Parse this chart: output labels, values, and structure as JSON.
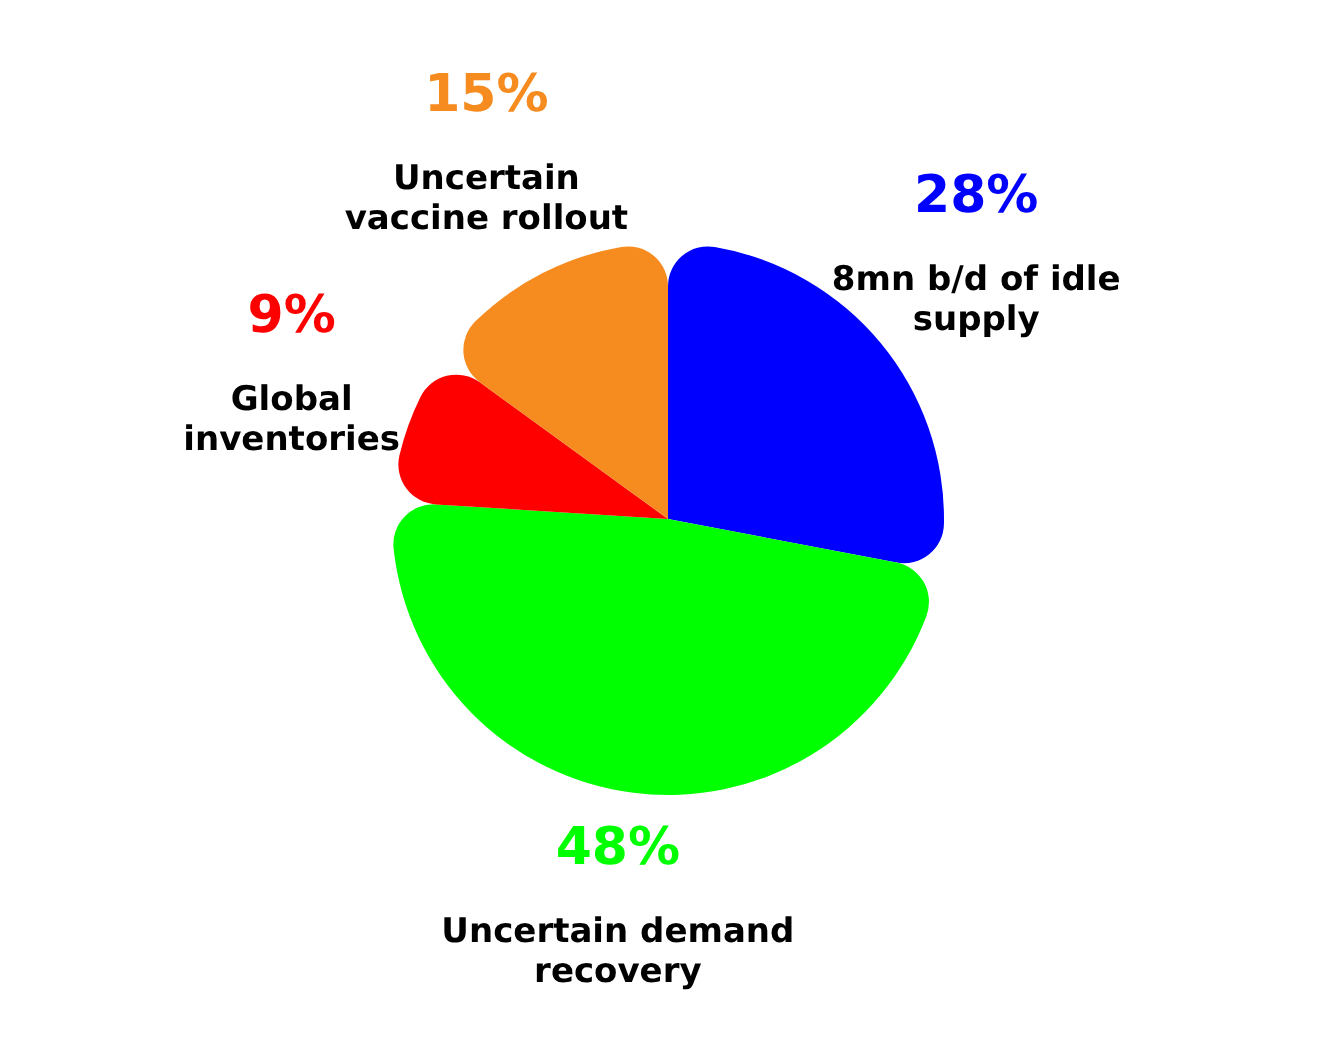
{
  "chart_data": {
    "type": "pie",
    "categories": [
      "8mn b/d of idle supply",
      "Uncertain demand recovery",
      "Global inventories",
      "Uncertain vaccine rollout"
    ],
    "values": [
      28,
      48,
      9,
      15
    ],
    "value_labels": [
      "28%",
      "48%",
      "9%",
      "15%"
    ],
    "colors": [
      "#0000ff",
      "#00ff00",
      "#ff0000",
      "#f68b1f"
    ],
    "legend": false
  }
}
